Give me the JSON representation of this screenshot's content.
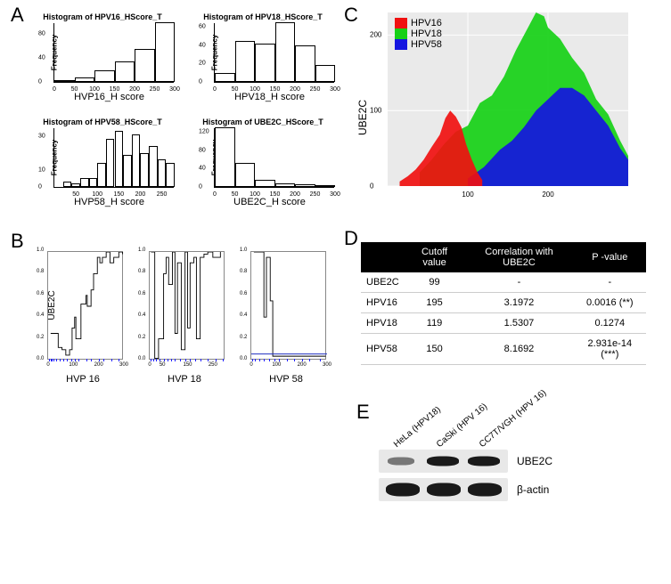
{
  "labels": {
    "A": "A",
    "B": "B",
    "C": "C",
    "D": "D",
    "E": "E"
  },
  "panelA": {
    "hists": [
      {
        "title": "Histogram of HPV16_HScore_T",
        "xlabel": "HVP16_H score",
        "ylabel": "Frequency",
        "xlim": [
          0,
          300
        ],
        "ylim": [
          0,
          100
        ],
        "bin_edges": [
          0,
          50,
          100,
          150,
          200,
          250,
          300
        ],
        "counts": [
          2,
          8,
          20,
          35,
          55,
          100
        ],
        "yticks": [
          0,
          40,
          80
        ],
        "xticks": [
          0,
          50,
          100,
          150,
          200,
          250,
          300
        ]
      },
      {
        "title": "Histogram of HPV18_HScore_T",
        "xlabel": "HPV18_H score",
        "ylabel": "Frequency",
        "xlim": [
          0,
          300
        ],
        "ylim": [
          0,
          65
        ],
        "bin_edges": [
          0,
          50,
          100,
          150,
          200,
          250,
          300
        ],
        "counts": [
          10,
          45,
          42,
          65,
          40,
          18
        ],
        "yticks": [
          0,
          20,
          40,
          60
        ],
        "xticks": [
          0,
          50,
          100,
          150,
          200,
          250,
          300
        ]
      },
      {
        "title": "Histogram of HPV58_HScore_T",
        "xlabel": "HVP58_H score",
        "ylabel": "Frequency",
        "xlim": [
          0,
          280
        ],
        "ylim": [
          0,
          35
        ],
        "bin_edges": [
          20,
          40,
          60,
          80,
          100,
          120,
          140,
          160,
          180,
          200,
          220,
          240,
          260,
          280
        ],
        "counts": [
          3,
          2,
          5,
          5,
          14,
          28,
          33,
          19,
          31,
          20,
          24,
          16,
          14
        ],
        "yticks": [
          0,
          10,
          30
        ],
        "xticks": [
          50,
          100,
          150,
          200,
          250
        ]
      },
      {
        "title": "Histogram of UBE2C_HScore_T",
        "xlabel": "UBE2C_H score",
        "ylabel": "Frequency",
        "xlim": [
          0,
          300
        ],
        "ylim": [
          0,
          130
        ],
        "bin_edges": [
          0,
          50,
          100,
          150,
          200,
          250,
          300
        ],
        "counts": [
          130,
          53,
          15,
          8,
          5,
          3
        ],
        "yticks": [
          0,
          40,
          80,
          120
        ],
        "xticks": [
          0,
          50,
          100,
          150,
          200,
          250,
          300
        ]
      }
    ]
  },
  "panelB": {
    "sharedYLabel": "UBE2C",
    "charts": [
      {
        "xlabel": "HVP 16",
        "xlim": [
          0,
          300
        ],
        "ylim": [
          0,
          1
        ],
        "yticks": [
          0,
          0.2,
          0.4,
          0.6,
          0.8,
          1.0
        ],
        "xticks": [
          0,
          100,
          200,
          300
        ],
        "points": [
          [
            10,
            0.25
          ],
          [
            30,
            0.25
          ],
          [
            40,
            0.12
          ],
          [
            55,
            0.1
          ],
          [
            70,
            0.05
          ],
          [
            85,
            0.1
          ],
          [
            95,
            0.3
          ],
          [
            105,
            0.4
          ],
          [
            110,
            0.2
          ],
          [
            130,
            0.52
          ],
          [
            150,
            0.6
          ],
          [
            155,
            0.5
          ],
          [
            170,
            0.65
          ],
          [
            180,
            0.8
          ],
          [
            195,
            0.95
          ],
          [
            205,
            0.9
          ],
          [
            215,
            0.95
          ],
          [
            230,
            1.0
          ],
          [
            245,
            0.9
          ],
          [
            260,
            0.95
          ],
          [
            280,
            1.0
          ],
          [
            295,
            0.98
          ]
        ],
        "rug": [
          5,
          10,
          15,
          20,
          30,
          45,
          60,
          75,
          90,
          105,
          120,
          150,
          170,
          200,
          220,
          250,
          280
        ]
      },
      {
        "xlabel": "HVP 18",
        "xlim": [
          0,
          300
        ],
        "ylim": [
          0,
          1
        ],
        "yticks": [
          0,
          0.2,
          0.4,
          0.6,
          0.8,
          1.0
        ],
        "xticks": [
          0,
          50,
          150,
          250
        ],
        "points": [
          [
            5,
            1.0
          ],
          [
            20,
            0.02
          ],
          [
            35,
            0.2
          ],
          [
            55,
            0.8
          ],
          [
            65,
            0.95
          ],
          [
            75,
            0.7
          ],
          [
            90,
            1.0
          ],
          [
            100,
            0.25
          ],
          [
            110,
            0.9
          ],
          [
            125,
            0.1
          ],
          [
            140,
            1.0
          ],
          [
            150,
            0.3
          ],
          [
            160,
            0.9
          ],
          [
            175,
            0.95
          ],
          [
            185,
            0.2
          ],
          [
            200,
            0.95
          ],
          [
            215,
            0.98
          ],
          [
            230,
            1.0
          ],
          [
            250,
            0.95
          ],
          [
            280,
            1.0
          ]
        ],
        "rug": [
          5,
          15,
          25,
          40,
          55,
          70,
          85,
          100,
          120,
          140,
          160,
          180,
          200,
          230,
          260,
          290
        ]
      },
      {
        "xlabel": "HVP 58",
        "xlim": [
          0,
          300
        ],
        "ylim": [
          0,
          1
        ],
        "yticks": [
          0,
          0.2,
          0.4,
          0.6,
          0.8,
          1.0
        ],
        "xticks": [
          0,
          100,
          200,
          300
        ],
        "points": [
          [
            10,
            1.0
          ],
          [
            25,
            1.0
          ],
          [
            45,
            1.0
          ],
          [
            50,
            0.4
          ],
          [
            60,
            0.95
          ],
          [
            75,
            0.55
          ],
          [
            85,
            0.04
          ],
          [
            95,
            0.04
          ],
          [
            120,
            0.04
          ],
          [
            150,
            0.04
          ],
          [
            180,
            0.04
          ],
          [
            210,
            0.04
          ],
          [
            250,
            0.04
          ],
          [
            295,
            0.04
          ]
        ],
        "hline": 0.06,
        "rug": [
          5,
          15,
          30,
          50,
          70,
          90,
          110,
          140,
          170,
          200,
          230,
          270
        ]
      }
    ]
  },
  "panelC": {
    "ylabel": "UBE2C",
    "xlim": [
      0,
      300
    ],
    "ylim": [
      0,
      230
    ],
    "xticks": [
      100,
      200
    ],
    "yticks": [
      0,
      100,
      200
    ],
    "grid_color": "#ffffff",
    "bg_color": "#eaeaea",
    "series": [
      {
        "name": "HPV18",
        "color": "#16d016",
        "poly": [
          [
            40,
            18
          ],
          [
            55,
            35
          ],
          [
            70,
            55
          ],
          [
            85,
            72
          ],
          [
            100,
            80
          ],
          [
            115,
            110
          ],
          [
            130,
            120
          ],
          [
            145,
            145
          ],
          [
            160,
            180
          ],
          [
            175,
            210
          ],
          [
            185,
            230
          ],
          [
            195,
            225
          ],
          [
            200,
            210
          ],
          [
            215,
            195
          ],
          [
            230,
            170
          ],
          [
            245,
            150
          ],
          [
            260,
            115
          ],
          [
            275,
            95
          ],
          [
            290,
            60
          ],
          [
            300,
            40
          ],
          [
            300,
            0
          ],
          [
            40,
            0
          ]
        ]
      },
      {
        "name": "HPV58",
        "color": "#1515e0",
        "poly": [
          [
            100,
            10
          ],
          [
            120,
            25
          ],
          [
            140,
            48
          ],
          [
            155,
            60
          ],
          [
            170,
            78
          ],
          [
            185,
            100
          ],
          [
            200,
            115
          ],
          [
            215,
            130
          ],
          [
            230,
            130
          ],
          [
            245,
            120
          ],
          [
            260,
            100
          ],
          [
            275,
            80
          ],
          [
            290,
            50
          ],
          [
            300,
            35
          ],
          [
            300,
            0
          ],
          [
            100,
            0
          ]
        ]
      },
      {
        "name": "HPV16",
        "color": "#f01010",
        "poly": [
          [
            15,
            6
          ],
          [
            25,
            13
          ],
          [
            35,
            22
          ],
          [
            45,
            35
          ],
          [
            55,
            52
          ],
          [
            65,
            68
          ],
          [
            72,
            90
          ],
          [
            78,
            100
          ],
          [
            85,
            92
          ],
          [
            92,
            78
          ],
          [
            98,
            55
          ],
          [
            105,
            35
          ],
          [
            112,
            18
          ],
          [
            118,
            8
          ],
          [
            118,
            0
          ],
          [
            15,
            0
          ]
        ]
      }
    ],
    "legend": [
      {
        "label": "HPV16",
        "color": "#f01010"
      },
      {
        "label": "HPV18",
        "color": "#16d016"
      },
      {
        "label": "HPV58",
        "color": "#1515e0"
      }
    ]
  },
  "panelD": {
    "headers": [
      "",
      "Cutoff value",
      "Correlation with UBE2C",
      "P -value"
    ],
    "rows": [
      [
        "UBE2C",
        "99",
        "-",
        "-"
      ],
      [
        "HPV16",
        "195",
        "3.1972",
        "0.0016 (**)"
      ],
      [
        "HPV18",
        "119",
        "1.5307",
        "0.1274"
      ],
      [
        "HPV58",
        "150",
        "8.1692",
        "2.931e-14 (***)"
      ]
    ]
  },
  "panelE": {
    "lanes": [
      "HeLa (HPV18)",
      "CaSki (HPV 16)",
      "CC7T/VGH (HPV 16)"
    ],
    "rows": [
      {
        "label": "UBE2C",
        "bands": [
          {
            "x": 10,
            "w": 30,
            "intensity": "faint"
          },
          {
            "x": 54,
            "w": 36,
            "intensity": "normal"
          },
          {
            "x": 100,
            "w": 36,
            "intensity": "normal"
          }
        ]
      },
      {
        "label": "β-actin",
        "bands": [
          {
            "x": 8,
            "w": 38,
            "intensity": "thick"
          },
          {
            "x": 54,
            "w": 38,
            "intensity": "thick"
          },
          {
            "x": 100,
            "w": 38,
            "intensity": "thick"
          }
        ]
      }
    ]
  }
}
